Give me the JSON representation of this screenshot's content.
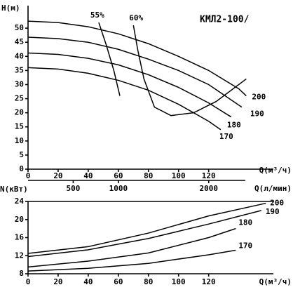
{
  "chart_data": [
    {
      "type": "line",
      "title": "КМЛ2-100/",
      "y_label": "H(м)",
      "x_label": "Q(м³/ч)",
      "x2_label": "Q(л/мин)",
      "xlim": [
        0,
        163
      ],
      "ylim": [
        0,
        58
      ],
      "xticks": [
        0,
        20,
        40,
        60,
        80,
        100,
        120
      ],
      "yticks": [
        0,
        5,
        10,
        15,
        20,
        25,
        30,
        35,
        40,
        45,
        50
      ],
      "x2lim": [
        0,
        2716
      ],
      "x2ticks": [
        500,
        1000,
        2000
      ],
      "grid": false,
      "series": [
        {
          "name": "200",
          "color": "#000000",
          "x": [
            0,
            20,
            40,
            60,
            80,
            100,
            120,
            140,
            145
          ],
          "values": [
            52.5,
            52,
            50.5,
            48,
            44.5,
            40,
            35,
            28.5,
            26
          ]
        },
        {
          "name": "190",
          "color": "#000000",
          "x": [
            0,
            20,
            40,
            60,
            80,
            100,
            120,
            142
          ],
          "values": [
            46.8,
            46.3,
            45,
            42.5,
            39,
            35,
            30,
            22
          ]
        },
        {
          "name": "180",
          "color": "#000000",
          "x": [
            0,
            20,
            40,
            60,
            80,
            100,
            120,
            135
          ],
          "values": [
            41.2,
            40.7,
            39.3,
            37,
            33.5,
            29,
            23.5,
            18.5
          ]
        },
        {
          "name": "170",
          "color": "#000000",
          "x": [
            0,
            20,
            40,
            60,
            80,
            100,
            120,
            128
          ],
          "values": [
            36,
            35.5,
            34,
            31.5,
            28,
            23,
            17,
            14
          ]
        },
        {
          "name": "55%",
          "color": "#000000",
          "x": [
            47,
            52,
            57,
            61
          ],
          "values": [
            52,
            44,
            35,
            26
          ]
        },
        {
          "name": "60%",
          "color": "#000000",
          "x": [
            70,
            73,
            77,
            84,
            95,
            110,
            125,
            145
          ],
          "values": [
            51,
            42,
            32,
            22,
            19,
            20,
            24,
            32
          ]
        }
      ]
    },
    {
      "type": "line",
      "y_label": "N(кВт)",
      "x_label": "Q(м³/ч)",
      "xlim": [
        0,
        163
      ],
      "ylim": [
        8,
        24
      ],
      "xticks": [
        0,
        20,
        40,
        60,
        80,
        100,
        120
      ],
      "yticks": [
        8,
        12,
        16,
        20,
        24
      ],
      "grid": false,
      "series": [
        {
          "name": "200",
          "color": "#000000",
          "x": [
            0,
            40,
            80,
            120,
            158
          ],
          "values": [
            12.5,
            14,
            17,
            20.8,
            23.6
          ]
        },
        {
          "name": "190",
          "color": "#000000",
          "x": [
            0,
            40,
            80,
            120,
            155
          ],
          "values": [
            11.8,
            13.3,
            15.8,
            19,
            22
          ]
        },
        {
          "name": "180",
          "color": "#000000",
          "x": [
            0,
            40,
            80,
            120,
            138
          ],
          "values": [
            9.5,
            10.8,
            12.6,
            16,
            18
          ]
        },
        {
          "name": "170",
          "color": "#000000",
          "x": [
            0,
            40,
            80,
            120,
            138
          ],
          "values": [
            8.6,
            9.2,
            10.3,
            12.2,
            13.2
          ]
        }
      ]
    }
  ]
}
